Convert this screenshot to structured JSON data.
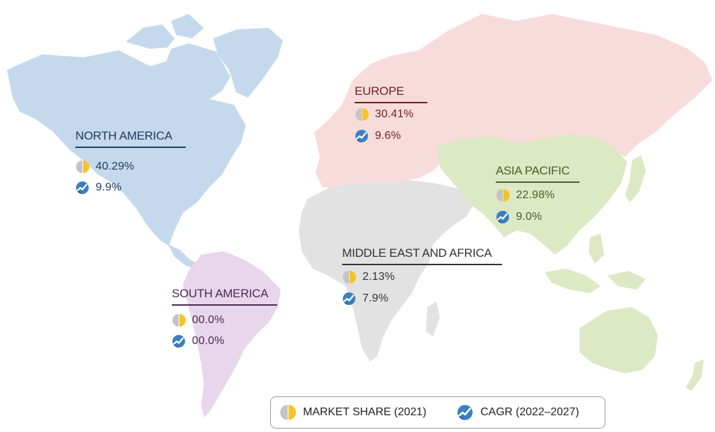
{
  "colors": {
    "north_america": "#c5d9ec",
    "south_america": "#e8d7ec",
    "europe": "#f8dcdc",
    "russia": "#f8dcdc",
    "asia_pacific": "#dde8c5",
    "middle_east_africa": "#e2e2e2",
    "market_share_icon_left": "#c4c4c4",
    "market_share_icon_right": "#f6c326",
    "cagr_icon": "#3c7fc0"
  },
  "regions": {
    "north_america": {
      "title": "NORTH AMERICA",
      "market_share": "40.29%",
      "cagr": "9.9%",
      "title_color": "#1f3a5a",
      "line_color": "#1f3a5a",
      "value_color": "#1f3a5a"
    },
    "europe": {
      "title": "EUROPE",
      "market_share": "30.41%",
      "cagr": "9.6%",
      "title_color": "#6e1f1f",
      "line_color": "#6e1f1f",
      "value_color": "#6e1f1f"
    },
    "asia_pacific": {
      "title": "ASIA PACIFIC",
      "market_share": "22.98%",
      "cagr": "9.0%",
      "title_color": "#4d5e26",
      "line_color": "#4d5e26",
      "value_color": "#4d5e26"
    },
    "middle_east_africa": {
      "title": "MIDDLE EAST AND AFRICA",
      "market_share": "2.13%",
      "cagr": "7.9%",
      "title_color": "#333333",
      "line_color": "#333333",
      "value_color": "#333333"
    },
    "south_america": {
      "title": "SOUTH  AMERICA",
      "market_share": "00.0%",
      "cagr": "00.0%",
      "title_color": "#4b2a55",
      "line_color": "#4b2a55",
      "value_color": "#4b2a55"
    }
  },
  "legend": {
    "market_share_label": "MARKET SHARE (2021)",
    "cagr_label": "CAGR (2022–2027)"
  }
}
